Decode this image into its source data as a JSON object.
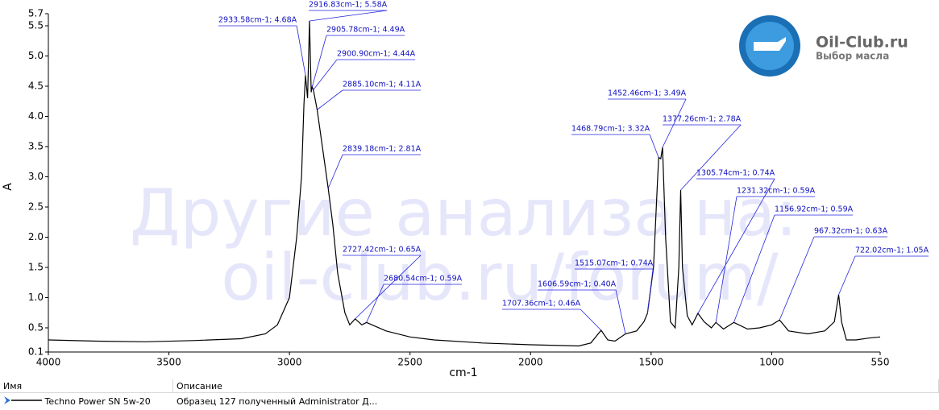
{
  "chart_data": {
    "type": "line",
    "xlabel": "cm-1",
    "ylabel": "A",
    "xlim": [
      4000,
      550
    ],
    "ylim": [
      0.1,
      5.7
    ],
    "xticks": [
      4000,
      3500,
      3000,
      2500,
      2000,
      1500,
      1000,
      550
    ],
    "yticks": [
      0.1,
      0.5,
      {
        "value": 1,
        "label": "1.0"
      },
      1.5,
      {
        "value": 2,
        "label": "2.0"
      },
      2.5,
      {
        "value": 3,
        "label": "3.0"
      },
      3.5,
      {
        "value": 4,
        "label": "4.0"
      },
      4.5,
      {
        "value": 5,
        "label": "5.0"
      },
      5.5,
      5.7
    ],
    "grid": false,
    "series": [
      {
        "name": "Techno Power SN 5w-20",
        "color": "#000000",
        "x": [
          4000,
          3800,
          3600,
          3400,
          3200,
          3100,
          3050,
          3000,
          2970,
          2950,
          2940,
          2933.58,
          2925,
          2916.83,
          2910,
          2905.78,
          2900.9,
          2885.1,
          2860,
          2839.18,
          2820,
          2800,
          2770,
          2750,
          2727.42,
          2700,
          2680.54,
          2600,
          2500,
          2400,
          2200,
          2000,
          1800,
          1750,
          1707.36,
          1680,
          1650,
          1606.59,
          1560,
          1530,
          1515.07,
          1490,
          1475,
          1468.79,
          1460,
          1452.46,
          1440,
          1420,
          1400,
          1385,
          1377.26,
          1370,
          1350,
          1330,
          1305.74,
          1280,
          1250,
          1231.32,
          1200,
          1156.92,
          1100,
          1050,
          1000,
          967.32,
          930,
          850,
          780,
          740,
          722.02,
          710,
          690,
          650,
          600,
          550
        ],
        "values": [
          0.3,
          0.28,
          0.27,
          0.29,
          0.32,
          0.4,
          0.55,
          1.0,
          2.0,
          3.0,
          4.2,
          4.68,
          4.3,
          5.58,
          4.4,
          4.49,
          4.44,
          4.11,
          3.4,
          2.81,
          2.2,
          1.4,
          0.75,
          0.55,
          0.65,
          0.55,
          0.59,
          0.45,
          0.35,
          0.3,
          0.25,
          0.22,
          0.2,
          0.25,
          0.46,
          0.3,
          0.28,
          0.4,
          0.45,
          0.6,
          0.74,
          1.5,
          2.8,
          3.32,
          3.3,
          3.49,
          2.0,
          0.6,
          0.5,
          1.5,
          2.78,
          1.5,
          0.7,
          0.55,
          0.74,
          0.6,
          0.5,
          0.59,
          0.48,
          0.59,
          0.48,
          0.5,
          0.55,
          0.63,
          0.45,
          0.4,
          0.45,
          0.6,
          1.05,
          0.6,
          0.3,
          0.3,
          0.33,
          0.35
        ]
      }
    ],
    "annotations": [
      {
        "label": "2933.58cm-1; 4.68A",
        "x": 2933.58,
        "y": 4.68
      },
      {
        "label": "2916.83cm-1; 5.58A",
        "x": 2916.83,
        "y": 5.58
      },
      {
        "label": "2905.78cm-1; 4.49A",
        "x": 2905.78,
        "y": 4.49
      },
      {
        "label": "2900.90cm-1; 4.44A",
        "x": 2900.9,
        "y": 4.44
      },
      {
        "label": "2885.10cm-1; 4.11A",
        "x": 2885.1,
        "y": 4.11
      },
      {
        "label": "2839.18cm-1; 2.81A",
        "x": 2839.18,
        "y": 2.81
      },
      {
        "label": "2727.42cm-1; 0.65A",
        "x": 2727.42,
        "y": 0.65
      },
      {
        "label": "2680.54cm-1; 0.59A",
        "x": 2680.54,
        "y": 0.59
      },
      {
        "label": "1707.36cm-1; 0.46A",
        "x": 1707.36,
        "y": 0.46
      },
      {
        "label": "1606.59cm-1; 0.40A",
        "x": 1606.59,
        "y": 0.4
      },
      {
        "label": "1515.07cm-1; 0.74A",
        "x": 1515.07,
        "y": 0.74
      },
      {
        "label": "1468.79cm-1; 3.32A",
        "x": 1468.79,
        "y": 3.32
      },
      {
        "label": "1452.46cm-1; 3.49A",
        "x": 1452.46,
        "y": 3.49
      },
      {
        "label": "1377.26cm-1; 2.78A",
        "x": 1377.26,
        "y": 2.78
      },
      {
        "label": "1305.74cm-1; 0.74A",
        "x": 1305.74,
        "y": 0.74
      },
      {
        "label": "1231.32cm-1; 0.59A",
        "x": 1231.32,
        "y": 0.59
      },
      {
        "label": "1156.92cm-1; 0.59A",
        "x": 1156.92,
        "y": 0.59
      },
      {
        "label": "967.32cm-1; 0.63A",
        "x": 967.32,
        "y": 0.63
      },
      {
        "label": "722.02cm-1; 1.05A",
        "x": 722.02,
        "y": 1.05
      }
    ]
  },
  "watermark": [
    "Другие анализа на:",
    "oil-club.ru/forum/"
  ],
  "logo": {
    "title": "Oil-Club.ru",
    "subtitle": "Выбор масла"
  },
  "table": {
    "columns": [
      "Имя",
      "Описание"
    ],
    "description": "Образец 127 полученный Administrator Д..."
  }
}
